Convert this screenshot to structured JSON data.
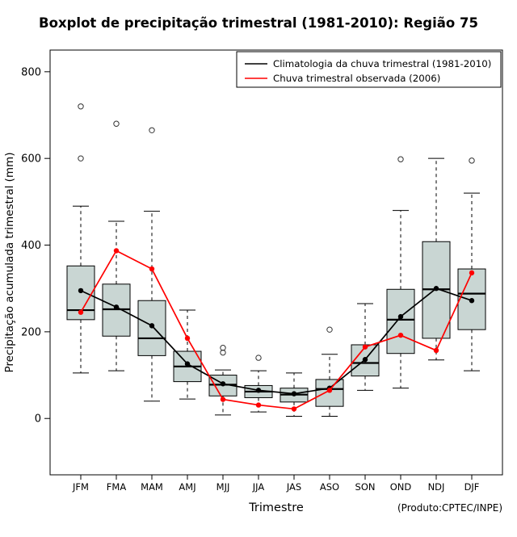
{
  "chart_data": {
    "type": "boxplot",
    "title": "Boxplot de precipitação trimestral (1981-2010): Região 75",
    "xlabel": "Trimestre",
    "ylabel": "Precipitação acumulada trimestral (mm)",
    "annotation": "(Produto:CPTEC/INPE)",
    "ylim": [
      -130,
      850
    ],
    "yticks": [
      0,
      200,
      400,
      600,
      800
    ],
    "grid": false,
    "legend_position": "top-right",
    "box_fill": "#c9d6d3",
    "categories": [
      "JFM",
      "FMA",
      "MAM",
      "AMJ",
      "MJJ",
      "JJA",
      "JAS",
      "ASO",
      "SON",
      "OND",
      "NDJ",
      "DJF"
    ],
    "boxes": [
      {
        "low": 105,
        "q1": 228,
        "median": 250,
        "q3": 352,
        "high": 490,
        "outliers": [
          600,
          720
        ]
      },
      {
        "low": 110,
        "q1": 190,
        "median": 252,
        "q3": 310,
        "high": 455,
        "outliers": [
          680
        ]
      },
      {
        "low": 40,
        "q1": 145,
        "median": 185,
        "q3": 272,
        "high": 478,
        "outliers": [
          665
        ]
      },
      {
        "low": 45,
        "q1": 85,
        "median": 120,
        "q3": 155,
        "high": 250,
        "outliers": []
      },
      {
        "low": 8,
        "q1": 52,
        "median": 78,
        "q3": 100,
        "high": 112,
        "outliers": [
          152,
          163
        ]
      },
      {
        "low": 15,
        "q1": 48,
        "median": 62,
        "q3": 76,
        "high": 110,
        "outliers": [
          140
        ]
      },
      {
        "low": 5,
        "q1": 38,
        "median": 55,
        "q3": 70,
        "high": 105,
        "outliers": []
      },
      {
        "low": 5,
        "q1": 28,
        "median": 68,
        "q3": 90,
        "high": 148,
        "outliers": [
          205
        ]
      },
      {
        "low": 65,
        "q1": 98,
        "median": 128,
        "q3": 170,
        "high": 265,
        "outliers": []
      },
      {
        "low": 70,
        "q1": 150,
        "median": 228,
        "q3": 298,
        "high": 480,
        "outliers": [
          598
        ]
      },
      {
        "low": 135,
        "q1": 185,
        "median": 298,
        "q3": 408,
        "high": 600,
        "outliers": []
      },
      {
        "low": 110,
        "q1": 205,
        "median": 288,
        "q3": 345,
        "high": 520,
        "outliers": [
          595
        ]
      }
    ],
    "series": [
      {
        "name": "Climatologia da chuva trimestral (1981-2010)",
        "color": "#000000",
        "values": [
          295,
          257,
          214,
          126,
          80,
          65,
          57,
          70,
          136,
          235,
          300,
          272
        ]
      },
      {
        "name": "Chuva trimestral observada (2006)",
        "color": "#ff0000",
        "values": [
          245,
          387,
          345,
          185,
          44,
          31,
          22,
          65,
          165,
          192,
          157,
          336
        ]
      }
    ]
  }
}
